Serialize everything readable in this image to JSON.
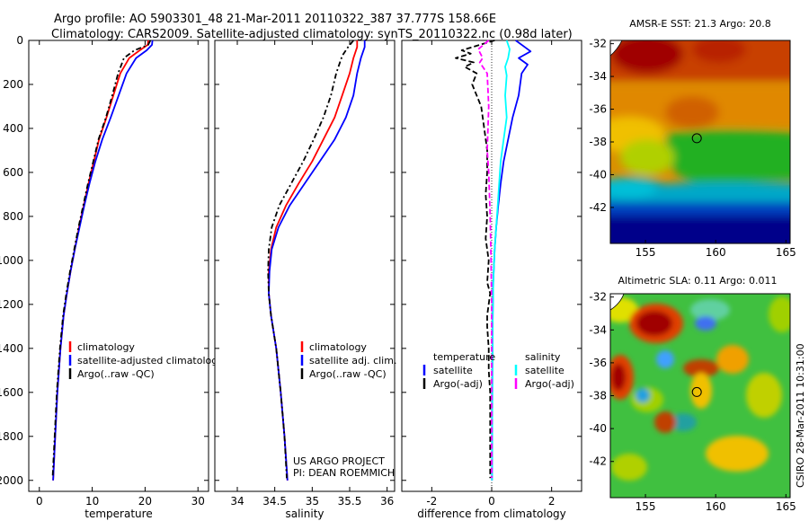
{
  "title_line1": "Argo profile: AO 5903301_48 21-Mar-2011 20110322_387 37.777S 158.66E",
  "title_line2": "Climatology: CARS2009. Satellite-adjusted climatology: synTS_20110322.nc (0.98d later)",
  "colors": {
    "climatology": "#ff0000",
    "satellite": "#0000ff",
    "argo": "#000000",
    "sat_salinity_diff": "#00ffff",
    "argo_salinity_diff": "#ff00ff"
  },
  "chart_data": [
    {
      "type": "line",
      "name": "temperature-profile",
      "xlabel": "temperature",
      "xlim": [
        -2,
        32
      ],
      "ylim": [
        0,
        2050
      ],
      "y_reversed": true,
      "xticks": [
        0,
        10,
        20,
        30
      ],
      "yticks": [
        0,
        200,
        400,
        600,
        800,
        1000,
        1200,
        1400,
        1600,
        1800,
        2000
      ],
      "series": [
        {
          "name": "climatology",
          "color": "#ff0000",
          "dash": "",
          "points": [
            [
              20.6,
              0
            ],
            [
              20.5,
              20
            ],
            [
              19.0,
              45
            ],
            [
              17.0,
              80
            ],
            [
              15.3,
              150
            ],
            [
              14.0,
              250
            ],
            [
              12.7,
              350
            ],
            [
              11.3,
              450
            ],
            [
              10.3,
              550
            ],
            [
              9.3,
              650
            ],
            [
              8.4,
              750
            ],
            [
              7.5,
              850
            ],
            [
              6.7,
              950
            ],
            [
              5.9,
              1050
            ],
            [
              5.2,
              1150
            ],
            [
              4.6,
              1250
            ],
            [
              4.0,
              1400
            ],
            [
              3.4,
              1600
            ],
            [
              3.0,
              1800
            ],
            [
              2.6,
              2000
            ]
          ]
        },
        {
          "name": "satellite-adjusted climatology",
          "color": "#0000ff",
          "dash": "",
          "points": [
            [
              21.4,
              0
            ],
            [
              21.3,
              20
            ],
            [
              20.3,
              45
            ],
            [
              18.3,
              80
            ],
            [
              16.5,
              150
            ],
            [
              15.0,
              250
            ],
            [
              13.5,
              350
            ],
            [
              11.9,
              450
            ],
            [
              10.6,
              550
            ],
            [
              9.5,
              650
            ],
            [
              8.5,
              750
            ],
            [
              7.6,
              850
            ],
            [
              6.7,
              950
            ],
            [
              5.9,
              1050
            ],
            [
              5.2,
              1150
            ],
            [
              4.6,
              1250
            ],
            [
              4.0,
              1400
            ],
            [
              3.4,
              1600
            ],
            [
              3.0,
              1800
            ],
            [
              2.6,
              2000
            ]
          ]
        },
        {
          "name": "Argo(..raw -QC)",
          "color": "#000000",
          "dash": "6,3,2,3",
          "points": [
            [
              21.0,
              0
            ],
            [
              20.6,
              20
            ],
            [
              18.0,
              45
            ],
            [
              16.0,
              80
            ],
            [
              14.9,
              150
            ],
            [
              13.8,
              250
            ],
            [
              12.6,
              350
            ],
            [
              11.2,
              450
            ],
            [
              10.2,
              550
            ],
            [
              9.2,
              650
            ],
            [
              8.3,
              750
            ],
            [
              7.4,
              850
            ],
            [
              6.6,
              950
            ],
            [
              5.8,
              1050
            ],
            [
              5.1,
              1150
            ],
            [
              4.5,
              1250
            ],
            [
              3.9,
              1400
            ],
            [
              3.3,
              1600
            ],
            [
              2.9,
              1800
            ],
            [
              2.5,
              1990
            ]
          ]
        }
      ],
      "legend": [
        {
          "label": "climatology",
          "color": "#ff0000"
        },
        {
          "label": "satellite-adjusted climatology",
          "color": "#0000ff"
        },
        {
          "label": "Argo(..raw -QC)",
          "color": "#000000"
        }
      ]
    },
    {
      "type": "line",
      "name": "salinity-profile",
      "xlabel": "salinity",
      "xlim": [
        33.7,
        36.1
      ],
      "ylim": [
        0,
        2050
      ],
      "y_reversed": true,
      "xticks": [
        34,
        34.5,
        35,
        35.5,
        36
      ],
      "series": [
        {
          "name": "climatology",
          "color": "#ff0000",
          "dash": "",
          "points": [
            [
              35.6,
              0
            ],
            [
              35.6,
              30
            ],
            [
              35.55,
              80
            ],
            [
              35.5,
              150
            ],
            [
              35.4,
              250
            ],
            [
              35.3,
              350
            ],
            [
              35.15,
              450
            ],
            [
              35.0,
              550
            ],
            [
              34.82,
              650
            ],
            [
              34.65,
              750
            ],
            [
              34.52,
              850
            ],
            [
              34.45,
              950
            ],
            [
              34.42,
              1050
            ],
            [
              34.42,
              1150
            ],
            [
              34.45,
              1250
            ],
            [
              34.52,
              1400
            ],
            [
              34.58,
              1600
            ],
            [
              34.63,
              1800
            ],
            [
              34.67,
              2000
            ]
          ]
        },
        {
          "name": "satellite adj. clim.",
          "color": "#0000ff",
          "dash": "",
          "points": [
            [
              35.7,
              0
            ],
            [
              35.7,
              30
            ],
            [
              35.65,
              80
            ],
            [
              35.6,
              150
            ],
            [
              35.55,
              250
            ],
            [
              35.45,
              350
            ],
            [
              35.3,
              450
            ],
            [
              35.1,
              550
            ],
            [
              34.9,
              650
            ],
            [
              34.7,
              750
            ],
            [
              34.55,
              850
            ],
            [
              34.46,
              950
            ],
            [
              34.43,
              1050
            ],
            [
              34.42,
              1150
            ],
            [
              34.45,
              1250
            ],
            [
              34.52,
              1400
            ],
            [
              34.58,
              1600
            ],
            [
              34.63,
              1800
            ],
            [
              34.67,
              2000
            ]
          ]
        },
        {
          "name": "Argo(..raw -QC)",
          "color": "#000000",
          "dash": "6,3,2,3",
          "points": [
            [
              35.55,
              0
            ],
            [
              35.48,
              30
            ],
            [
              35.4,
              70
            ],
            [
              35.32,
              150
            ],
            [
              35.25,
              250
            ],
            [
              35.15,
              350
            ],
            [
              35.02,
              450
            ],
            [
              34.88,
              550
            ],
            [
              34.72,
              650
            ],
            [
              34.56,
              750
            ],
            [
              34.46,
              850
            ],
            [
              34.42,
              950
            ],
            [
              34.41,
              1050
            ],
            [
              34.42,
              1150
            ],
            [
              34.45,
              1250
            ],
            [
              34.52,
              1400
            ],
            [
              34.58,
              1600
            ],
            [
              34.63,
              1800
            ],
            [
              34.66,
              1990
            ]
          ]
        }
      ],
      "legend": [
        {
          "label": "climatology",
          "color": "#ff0000"
        },
        {
          "label": "satellite adj. clim.",
          "color": "#0000ff"
        },
        {
          "label": "Argo(..raw -QC)",
          "color": "#000000"
        }
      ],
      "annotation": [
        "US ARGO PROJECT",
        "PI: DEAN ROEMMICH"
      ]
    },
    {
      "type": "line",
      "name": "difference-profile",
      "xlabel": "difference from climatology",
      "xlim": [
        -3,
        3
      ],
      "ylim": [
        0,
        2050
      ],
      "y_reversed": true,
      "xticks": [
        -2,
        0,
        2
      ],
      "series": [
        {
          "name": "temperature satellite",
          "color": "#0000ff",
          "dash": "",
          "points": [
            [
              0.8,
              0
            ],
            [
              1.1,
              30
            ],
            [
              1.3,
              50
            ],
            [
              0.9,
              80
            ],
            [
              1.2,
              110
            ],
            [
              1.0,
              150
            ],
            [
              0.9,
              250
            ],
            [
              0.7,
              350
            ],
            [
              0.55,
              450
            ],
            [
              0.4,
              550
            ],
            [
              0.3,
              650
            ],
            [
              0.22,
              750
            ],
            [
              0.15,
              850
            ],
            [
              0.1,
              950
            ],
            [
              0.05,
              1100
            ],
            [
              0.03,
              1300
            ],
            [
              0.02,
              1600
            ],
            [
              0.01,
              2000
            ]
          ]
        },
        {
          "name": "salinity satellite",
          "color": "#00ffff",
          "dash": "",
          "points": [
            [
              0.5,
              0
            ],
            [
              0.6,
              40
            ],
            [
              0.55,
              80
            ],
            [
              0.45,
              120
            ],
            [
              0.5,
              160
            ],
            [
              0.45,
              250
            ],
            [
              0.5,
              350
            ],
            [
              0.4,
              450
            ],
            [
              0.3,
              550
            ],
            [
              0.25,
              650
            ],
            [
              0.2,
              750
            ],
            [
              0.15,
              850
            ],
            [
              0.1,
              950
            ],
            [
              0.05,
              1100
            ],
            [
              0.03,
              1300
            ],
            [
              0.02,
              1600
            ],
            [
              0.01,
              2000
            ]
          ]
        },
        {
          "name": "temperature Argo(-adj)",
          "color": "#000000",
          "dash": "6,3",
          "points": [
            [
              0.1,
              0
            ],
            [
              -0.4,
              20
            ],
            [
              -1.0,
              45
            ],
            [
              -0.7,
              60
            ],
            [
              -1.2,
              80
            ],
            [
              -0.6,
              100
            ],
            [
              -0.9,
              120
            ],
            [
              -0.5,
              150
            ],
            [
              -0.65,
              200
            ],
            [
              -0.35,
              300
            ],
            [
              -0.25,
              400
            ],
            [
              -0.15,
              500
            ],
            [
              -0.15,
              600
            ],
            [
              -0.2,
              700
            ],
            [
              -0.15,
              800
            ],
            [
              -0.2,
              900
            ],
            [
              -0.1,
              1000
            ],
            [
              -0.15,
              1100
            ],
            [
              -0.05,
              1150
            ],
            [
              -0.15,
              1250
            ],
            [
              -0.15,
              1300
            ],
            [
              -0.1,
              1400
            ],
            [
              -0.1,
              1500
            ],
            [
              -0.05,
              1600
            ],
            [
              -0.05,
              1800
            ],
            [
              -0.05,
              1990
            ]
          ]
        },
        {
          "name": "salinity Argo(-adj)",
          "color": "#ff00ff",
          "dash": "6,3",
          "points": [
            [
              -0.1,
              0
            ],
            [
              -0.45,
              40
            ],
            [
              -0.3,
              80
            ],
            [
              -0.4,
              100
            ],
            [
              -0.15,
              150
            ],
            [
              -0.1,
              300
            ],
            [
              -0.15,
              500
            ],
            [
              -0.1,
              600
            ],
            [
              -0.05,
              800
            ],
            [
              -0.02,
              1000
            ],
            [
              0,
              1200
            ],
            [
              0,
              1990
            ]
          ]
        }
      ],
      "zero_line": true,
      "legend_columns": [
        {
          "header": "temperature",
          "items": [
            {
              "label": "satellite",
              "color": "#0000ff"
            },
            {
              "label": "Argo(-adj)",
              "color": "#000000"
            }
          ]
        },
        {
          "header": "salinity",
          "items": [
            {
              "label": "satellite",
              "color": "#00ffff"
            },
            {
              "label": "Argo(-adj)",
              "color": "#ff00ff"
            }
          ]
        }
      ]
    },
    {
      "type": "heatmap",
      "name": "sst-map",
      "title": "AMSR-E SST: 21.3 Argo: 20.8",
      "xlim": [
        152.5,
        165.3
      ],
      "ylim": [
        -44.2,
        -31.8
      ],
      "xticks": [
        155,
        160,
        165
      ],
      "yticks": [
        -32,
        -34,
        -36,
        -38,
        -40,
        -42
      ],
      "marker": [
        158.66,
        -37.777
      ]
    },
    {
      "type": "heatmap",
      "name": "sla-map",
      "title": "Altimetric SLA: 0.11 Argo: 0.011",
      "xlim": [
        152.5,
        165.3
      ],
      "ylim": [
        -44.2,
        -31.8
      ],
      "xticks": [
        155,
        160,
        165
      ],
      "yticks": [
        -32,
        -34,
        -36,
        -38,
        -40,
        -42
      ],
      "marker": [
        158.66,
        -37.777
      ]
    }
  ],
  "side_label": "CSIRO 28-Mar-2011 10:31:00"
}
